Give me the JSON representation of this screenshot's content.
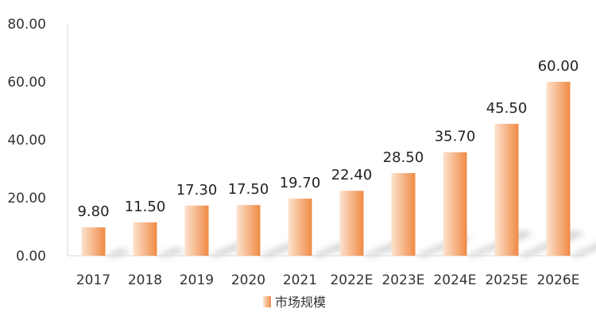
{
  "chart_data": {
    "type": "bar",
    "categories": [
      "2017",
      "2018",
      "2019",
      "2020",
      "2021",
      "2022E",
      "2023E",
      "2024E",
      "2025E",
      "2026E"
    ],
    "series": [
      {
        "name": "市场规模",
        "values": [
          9.8,
          11.5,
          17.3,
          17.5,
          19.7,
          22.4,
          28.5,
          35.7,
          45.5,
          60.0
        ],
        "value_labels": [
          "9.80",
          "11.50",
          "17.30",
          "17.50",
          "19.70",
          "22.40",
          "28.50",
          "35.70",
          "45.50",
          "60.00"
        ]
      }
    ],
    "y_ticks": [
      "0.00",
      "20.00",
      "40.00",
      "60.00",
      "80.00"
    ],
    "ylim": [
      0,
      80
    ],
    "grid": false,
    "legend_position": "bottom",
    "colors": {
      "bar_light": "#fde3cf",
      "bar_dark": "#ef8a45",
      "axis": "#d9d9d9"
    }
  }
}
